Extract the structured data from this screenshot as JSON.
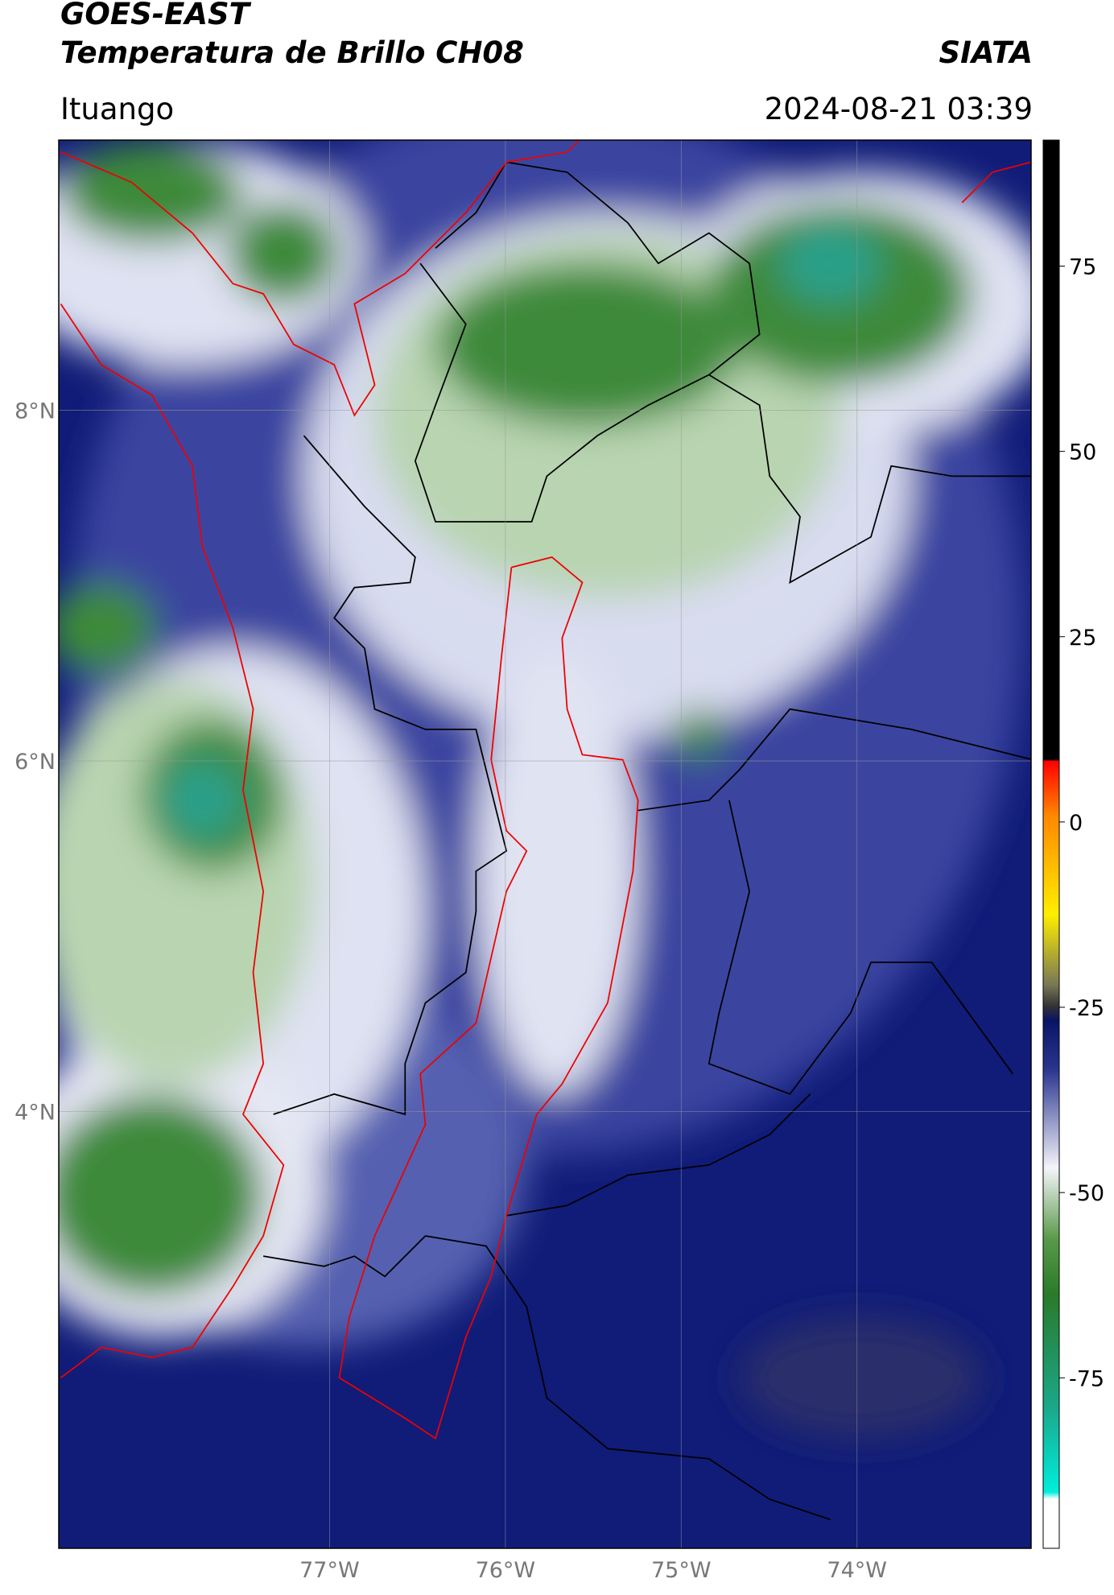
{
  "header": {
    "title": "GOES-EAST",
    "subtitle": "Temperatura de Brillo CH08",
    "source": "SIATA",
    "location": "Ituango",
    "datetime": "2024-08-21 03:39"
  },
  "map": {
    "xlim": [
      -78.54,
      -73.01
    ],
    "ylim": [
      1.51,
      9.54
    ],
    "xticks": [
      {
        "value": -77,
        "label": "77°W"
      },
      {
        "value": -76,
        "label": "76°W"
      },
      {
        "value": -75,
        "label": "75°W"
      },
      {
        "value": -74,
        "label": "74°W"
      }
    ],
    "yticks": [
      {
        "value": 8,
        "label": "8°N"
      },
      {
        "value": 6,
        "label": "6°N"
      },
      {
        "value": 4,
        "label": "4°N"
      }
    ],
    "grid": true
  },
  "colorbar": {
    "ylim": [
      -98,
      92
    ],
    "yticks": [
      75,
      50,
      25,
      0,
      -25,
      -50,
      -75
    ]
  }
}
